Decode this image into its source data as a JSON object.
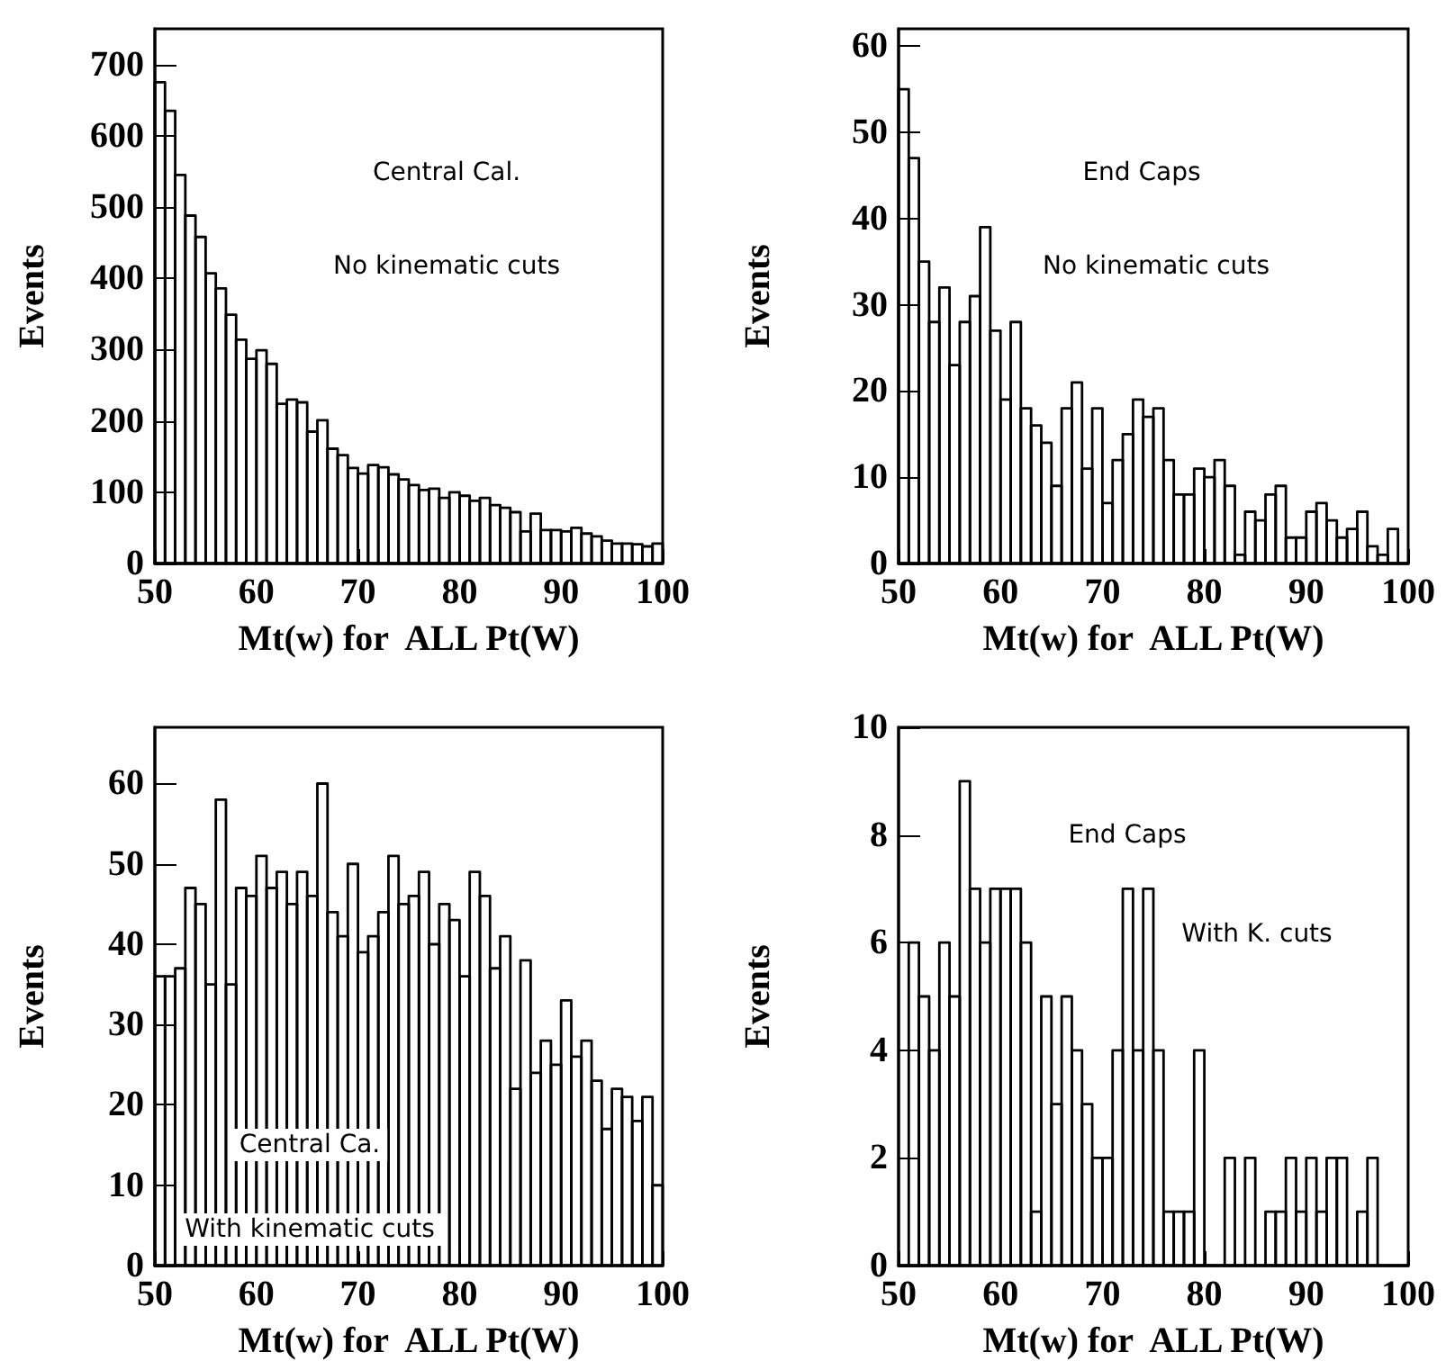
{
  "chart_data": [
    {
      "type": "histogram",
      "xlabel": "Mt(w) for  ALL Pt(W)",
      "ylabel": "Events",
      "annotations": [
        "Central Cal.",
        "No kinematic cuts"
      ],
      "color": "#000000",
      "bins": [
        50,
        51,
        52,
        53,
        54,
        55,
        56,
        57,
        58,
        59,
        60,
        61,
        62,
        63,
        64,
        65,
        66,
        67,
        68,
        69,
        70,
        71,
        72,
        73,
        74,
        75,
        76,
        77,
        78,
        79,
        80,
        81,
        82,
        83,
        84,
        85,
        86,
        87,
        88,
        89,
        90,
        91,
        92,
        93,
        94,
        95,
        96,
        97,
        98,
        99,
        100
      ],
      "values": [
        675,
        635,
        545,
        488,
        458,
        407,
        386,
        349,
        314,
        287,
        299,
        280,
        224,
        230,
        226,
        185,
        201,
        161,
        152,
        134,
        126,
        138,
        135,
        125,
        118,
        110,
        103,
        105,
        92,
        100,
        95,
        88,
        92,
        82,
        78,
        72,
        45,
        70,
        47,
        47,
        45,
        50,
        42,
        38,
        32,
        28,
        28,
        27,
        24,
        28
      ],
      "xlim": [
        50,
        100
      ],
      "xticks": [
        50,
        60,
        70,
        80,
        90,
        100
      ],
      "ylim": [
        0,
        750
      ],
      "yticks": [
        0,
        100,
        200,
        300,
        400,
        500,
        600,
        700
      ],
      "grid": false
    },
    {
      "type": "histogram",
      "xlabel": "Mt(w) for  ALL Pt(W)",
      "ylabel": "Events",
      "annotations": [
        "End Caps",
        "No kinematic cuts"
      ],
      "color": "#000000",
      "bins": [
        50,
        51,
        52,
        53,
        54,
        55,
        56,
        57,
        58,
        59,
        60,
        61,
        62,
        63,
        64,
        65,
        66,
        67,
        68,
        69,
        70,
        71,
        72,
        73,
        74,
        75,
        76,
        77,
        78,
        79,
        80,
        81,
        82,
        83,
        84,
        85,
        86,
        87,
        88,
        89,
        90,
        91,
        92,
        93,
        94,
        95,
        96,
        97,
        98,
        99,
        100
      ],
      "values": [
        55,
        47,
        35,
        28,
        32,
        23,
        28,
        31,
        39,
        27,
        19,
        28,
        18,
        16,
        14,
        9,
        18,
        21,
        11,
        18,
        7,
        12,
        15,
        19,
        17,
        18,
        12,
        8,
        8,
        11,
        10,
        12,
        9,
        1,
        6,
        5,
        8,
        9,
        3,
        3,
        6,
        7,
        5,
        3,
        4,
        6,
        2,
        1,
        4,
        0
      ],
      "xlim": [
        50,
        100
      ],
      "xticks": [
        50,
        60,
        70,
        80,
        90,
        100
      ],
      "ylim": [
        0,
        62
      ],
      "yticks": [
        0,
        10,
        20,
        30,
        40,
        50,
        60
      ],
      "grid": false
    },
    {
      "type": "histogram",
      "xlabel": "Mt(w) for  ALL Pt(W)",
      "ylabel": "Events",
      "annotations": [
        "Central Ca.",
        "With kinematic cuts"
      ],
      "color": "#000000",
      "bins": [
        50,
        51,
        52,
        53,
        54,
        55,
        56,
        57,
        58,
        59,
        60,
        61,
        62,
        63,
        64,
        65,
        66,
        67,
        68,
        69,
        70,
        71,
        72,
        73,
        74,
        75,
        76,
        77,
        78,
        79,
        80,
        81,
        82,
        83,
        84,
        85,
        86,
        87,
        88,
        89,
        90,
        91,
        92,
        93,
        94,
        95,
        96,
        97,
        98,
        99,
        100
      ],
      "values": [
        36,
        36,
        37,
        47,
        45,
        35,
        58,
        35,
        47,
        46,
        51,
        47,
        49,
        45,
        49,
        46,
        60,
        44,
        41,
        50,
        39,
        41,
        44,
        51,
        45,
        46,
        49,
        40,
        45,
        43,
        36,
        49,
        46,
        37,
        41,
        22,
        38,
        24,
        28,
        25,
        33,
        26,
        28,
        23,
        17,
        22,
        21,
        18,
        21,
        10
      ],
      "xlim": [
        50,
        100
      ],
      "xticks": [
        50,
        60,
        70,
        80,
        90,
        100
      ],
      "ylim": [
        0,
        67
      ],
      "yticks": [
        0,
        10,
        20,
        30,
        40,
        50,
        60
      ],
      "grid": false
    },
    {
      "type": "histogram",
      "xlabel": "Mt(w) for  ALL Pt(W)",
      "ylabel": "Events",
      "annotations": [
        "End Caps",
        "With K. cuts"
      ],
      "color": "#000000",
      "bins": [
        50,
        51,
        52,
        53,
        54,
        55,
        56,
        57,
        58,
        59,
        60,
        61,
        62,
        63,
        64,
        65,
        66,
        67,
        68,
        69,
        70,
        71,
        72,
        73,
        74,
        75,
        76,
        77,
        78,
        79,
        80,
        81,
        82,
        83,
        84,
        85,
        86,
        87,
        88,
        89,
        90,
        91,
        92,
        93,
        94,
        95,
        96,
        97,
        98,
        99,
        100
      ],
      "values": [
        0,
        6,
        5,
        4,
        6,
        5,
        9,
        7,
        6,
        7,
        7,
        7,
        6,
        1,
        5,
        3,
        5,
        4,
        3,
        2,
        2,
        4,
        7,
        4,
        7,
        4,
        1,
        1,
        1,
        4,
        0,
        0,
        2,
        0,
        2,
        0,
        1,
        1,
        2,
        1,
        2,
        1,
        2,
        2,
        0,
        1,
        2,
        0,
        0,
        0
      ],
      "xlim": [
        50,
        100
      ],
      "xticks": [
        50,
        60,
        70,
        80,
        90,
        100
      ],
      "ylim": [
        0,
        10
      ],
      "yticks": [
        0,
        2,
        4,
        6,
        8,
        10
      ],
      "grid": false
    }
  ]
}
